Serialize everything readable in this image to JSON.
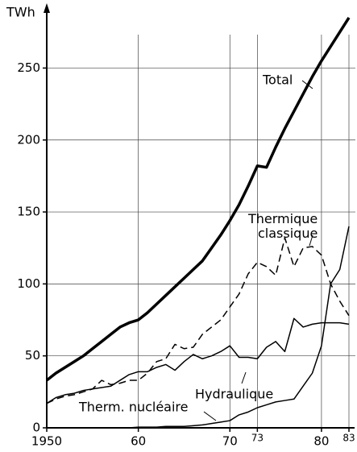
{
  "chart_data": {
    "type": "line",
    "y_label": "TWh",
    "x": [
      1950,
      1951,
      1952,
      1953,
      1954,
      1955,
      1956,
      1957,
      1958,
      1959,
      1960,
      1961,
      1962,
      1963,
      1964,
      1965,
      1966,
      1967,
      1968,
      1969,
      1970,
      1971,
      1972,
      1973,
      1974,
      1975,
      1976,
      1977,
      1978,
      1979,
      1980,
      1981,
      1982,
      1983
    ],
    "series": [
      {
        "name": "Total",
        "color": "#000",
        "style": "bold",
        "values": [
          33,
          38,
          42,
          46,
          50,
          55,
          60,
          65,
          70,
          73,
          75,
          80,
          86,
          92,
          98,
          104,
          110,
          116,
          125,
          134,
          144,
          155,
          168,
          182,
          181,
          195,
          208,
          220,
          232,
          244,
          255,
          265,
          275,
          285
        ]
      },
      {
        "name": "Thermique classique",
        "color": "#000",
        "style": "dashed",
        "values": [
          17,
          20,
          22,
          23,
          25,
          27,
          33,
          30,
          31,
          33,
          33,
          38,
          46,
          48,
          58,
          55,
          56,
          65,
          70,
          75,
          84,
          93,
          107,
          115,
          112,
          106,
          132,
          112,
          125,
          126,
          120,
          100,
          88,
          78
        ]
      },
      {
        "name": "Hydraulique",
        "color": "#000",
        "style": "solid",
        "values": [
          17,
          21,
          23,
          24,
          26,
          27,
          28,
          29,
          33,
          37,
          39,
          39,
          42,
          44,
          40,
          46,
          51,
          48,
          50,
          53,
          57,
          49,
          49,
          48,
          56,
          60,
          53,
          76,
          70,
          72,
          73,
          73,
          73,
          72
        ]
      },
      {
        "name": "Therm. nucléaire",
        "color": "#000",
        "style": "solid",
        "values": [
          0,
          0,
          0,
          0,
          0,
          0,
          0,
          0,
          0,
          0,
          0.5,
          0.5,
          0.5,
          1,
          1,
          1,
          1.5,
          2,
          3,
          4,
          5,
          9,
          11,
          14,
          16,
          18,
          19,
          20,
          29,
          38,
          57,
          100,
          110,
          140
        ]
      }
    ],
    "xlim": [
      1950,
      1983
    ],
    "xticks": [
      1950,
      {
        "value": 1960,
        "label": "60"
      },
      {
        "value": 1970,
        "label": "70"
      },
      {
        "value": 1973,
        "label": "73"
      },
      {
        "value": 1980,
        "label": "80"
      },
      {
        "value": 1983,
        "label": "83"
      }
    ],
    "ylim": [
      0,
      290
    ],
    "yticks": [
      0,
      50,
      100,
      150,
      200,
      250
    ],
    "grid": true
  }
}
